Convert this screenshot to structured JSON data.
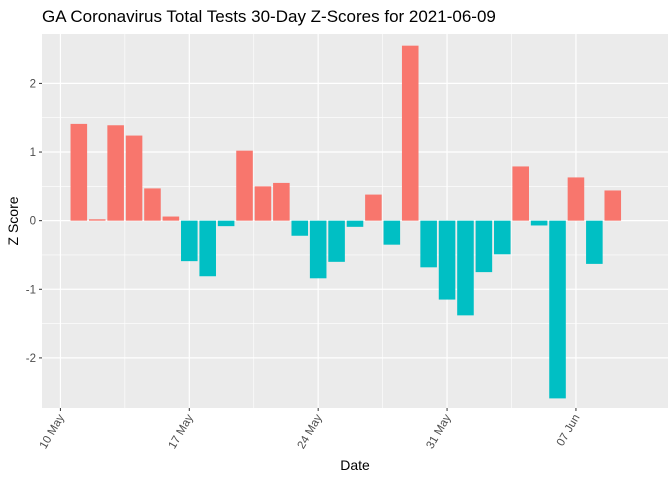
{
  "chart_data": {
    "type": "bar",
    "title": "GA Coronavirus Total Tests 30-Day Z-Scores for 2021-06-09",
    "xlabel": "Date",
    "ylabel": "Z Score",
    "x_ticks": [
      {
        "date": "2021-05-10",
        "label": "10 May"
      },
      {
        "date": "2021-05-17",
        "label": "17 May"
      },
      {
        "date": "2021-05-24",
        "label": "24 May"
      },
      {
        "date": "2021-05-31",
        "label": "31 May"
      },
      {
        "date": "2021-06-07",
        "label": "07 Jun"
      }
    ],
    "y_ticks": [
      -2,
      -1,
      0,
      1,
      2
    ],
    "y_tick_labels": [
      "-2",
      "-1",
      "0",
      "1",
      "2"
    ],
    "ylim": [
      -2.73,
      2.72
    ],
    "xlim": [
      "2021-05-09",
      "2021-06-12"
    ],
    "grid": true,
    "colors": {
      "positive": "#F8766D",
      "negative": "#00BFC4",
      "panel": "#EBEBEB",
      "grid": "#FFFFFF"
    },
    "x": [
      "2021-05-11",
      "2021-05-12",
      "2021-05-13",
      "2021-05-14",
      "2021-05-15",
      "2021-05-16",
      "2021-05-17",
      "2021-05-18",
      "2021-05-19",
      "2021-05-20",
      "2021-05-21",
      "2021-05-22",
      "2021-05-23",
      "2021-05-24",
      "2021-05-25",
      "2021-05-26",
      "2021-05-27",
      "2021-05-28",
      "2021-05-29",
      "2021-05-30",
      "2021-05-31",
      "2021-06-01",
      "2021-06-02",
      "2021-06-03",
      "2021-06-04",
      "2021-06-05",
      "2021-06-06",
      "2021-06-07",
      "2021-06-08",
      "2021-06-09"
    ],
    "values": [
      1.41,
      0.02,
      1.39,
      1.24,
      0.47,
      0.06,
      -0.59,
      -0.81,
      -0.08,
      1.02,
      0.5,
      0.55,
      -0.22,
      -0.84,
      -0.6,
      -0.09,
      0.38,
      -0.35,
      2.55,
      -0.68,
      -1.15,
      -1.38,
      -0.75,
      -0.49,
      0.79,
      -0.07,
      -2.59,
      0.63,
      -0.63,
      0.44
    ]
  }
}
